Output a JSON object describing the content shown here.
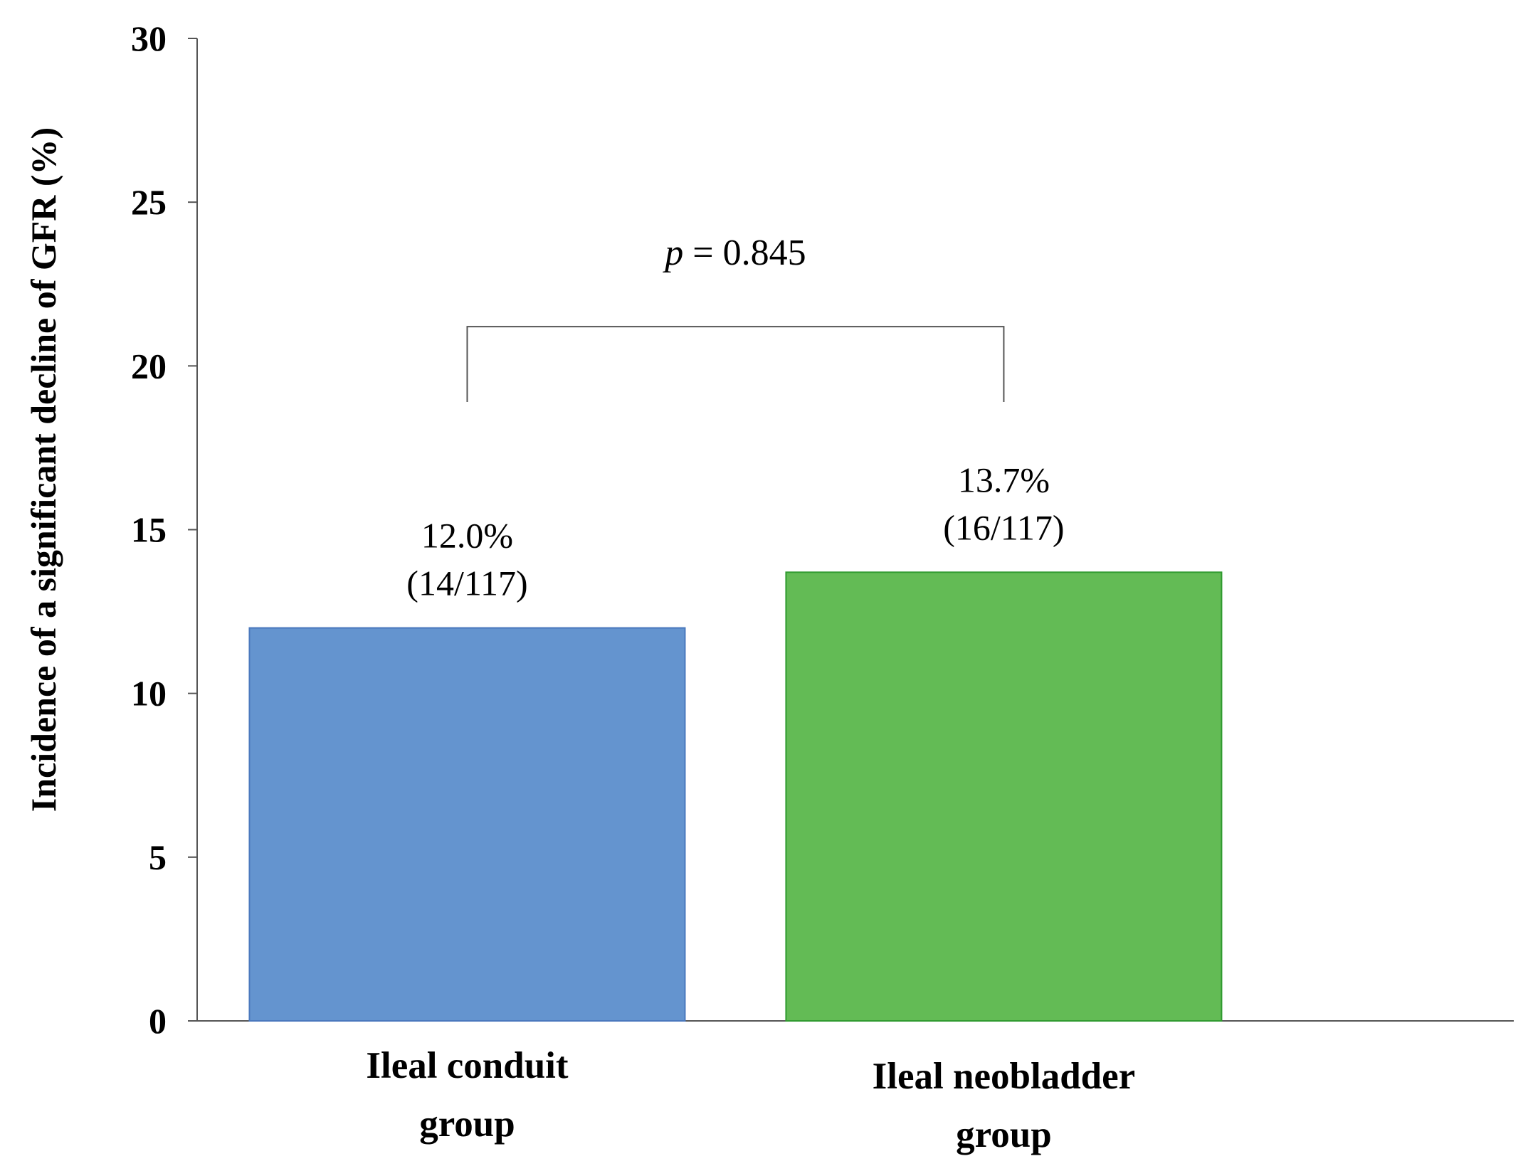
{
  "chart_data": {
    "type": "bar",
    "categories": [
      [
        "Ileal conduit",
        "group"
      ],
      [
        "Ileal neobladder",
        "group"
      ]
    ],
    "values": [
      12.0,
      13.7
    ],
    "bar_labels": [
      [
        "12.0%",
        "(14/117)"
      ],
      [
        "13.7%",
        "(16/117)"
      ]
    ],
    "colors": [
      "#6494cf",
      "#63bb55"
    ],
    "edge_colors": [
      "#4a78bd",
      "#2f9a2f"
    ],
    "ylabel": "Incidence of a significant decline of GFR (%)",
    "ylim": [
      0,
      30
    ],
    "yticks": [
      0,
      5,
      10,
      15,
      20,
      25,
      30
    ],
    "grid": false,
    "annotation": {
      "p_symbol": "p",
      "p_text": " = 0.845",
      "bracket_top_value": 21.2,
      "bracket_bottom_value": 18.9
    }
  }
}
